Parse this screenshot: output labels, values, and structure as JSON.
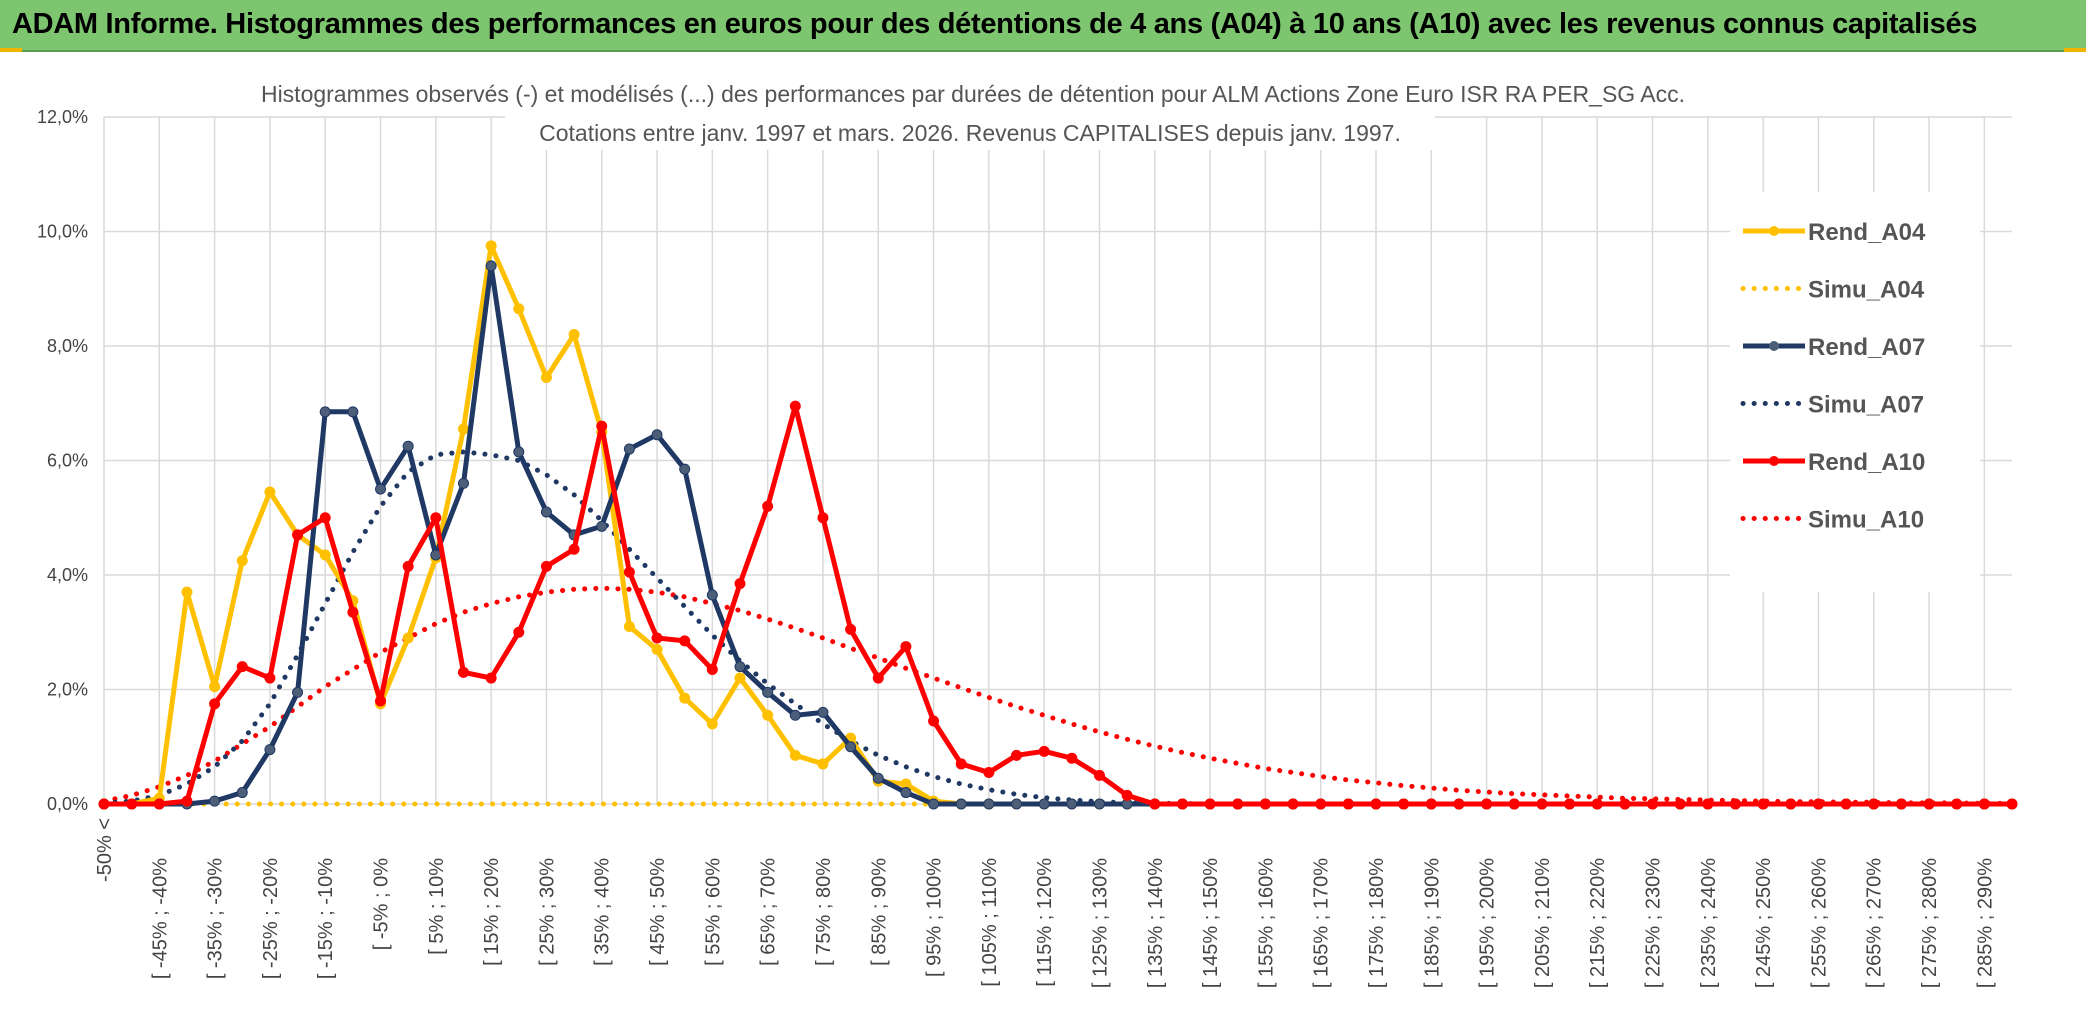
{
  "banner": {
    "title": "ADAM Informe. Histogrammes des performances en euros pour des détentions de 4 ans (A04) à 10 ans (A10) avec les revenus connus capitalisés"
  },
  "colors": {
    "banner_bg": "#7dc56f",
    "A04": "#ffc000",
    "A07": "#1f3864",
    "A10": "#ff0000",
    "grid": "#d9d9d9"
  },
  "chart_data": {
    "type": "line",
    "title_line1": "Histogrammes observés (-) et modélisés (...) des performances par durées de détention pour ALM Actions Zone Euro ISR RA PER_SG Acc.",
    "title_line2": "Cotations entre janv. 1997 et mars. 2026. Revenus CAPITALISES depuis janv. 1997.",
    "y_tick_labels": [
      "0,0%",
      "2,0%",
      "4,0%",
      "6,0%",
      "8,0%",
      "10,0%",
      "12,0%"
    ],
    "ylim": [
      0,
      12
    ],
    "x_tick_labels": [
      "-50% <",
      "[ -45% ; -40%",
      "[ -35% ; -30%",
      "[ -25% ; -20%",
      "[ -15% ; -10%",
      "[ -5% ; 0%",
      "[ 5% ; 10%",
      "[ 15% ; 20%",
      "[ 25% ; 30%",
      "[ 35% ; 40%",
      "[ 45% ; 50%",
      "[ 55% ; 60%",
      "[ 65% ; 70%",
      "[ 75% ; 80%",
      "[ 85% ; 90%",
      "[ 95% ; 100%",
      "[ 105% ; 110%",
      "[ 115% ; 120%",
      "[ 125% ; 130%",
      "[ 135% ; 140%",
      "[ 145% ; 150%",
      "[ 155% ; 160%",
      "[ 165% ; 170%",
      "[ 175% ; 180%",
      "[ 185% ; 190%",
      "[ 195% ; 200%",
      "[ 205% ; 210%",
      "[ 215% ; 220%",
      "[ 225% ; 230%",
      "[ 235% ; 240%",
      "[ 245% ; 250%",
      "[ 255% ; 260%",
      "[ 265% ; 270%",
      "[ 275% ; 280%",
      "[ 285% ; 290%"
    ],
    "n_points": 70,
    "series": [
      {
        "name": "Rend_A04",
        "style": "solid",
        "color": "#ffc000",
        "values": [
          0,
          0,
          0.1,
          3.7,
          2.05,
          4.25,
          5.45,
          4.7,
          4.35,
          3.55,
          1.75,
          2.9,
          4.3,
          6.55,
          9.75,
          8.65,
          7.45,
          8.2,
          6.5,
          3.1,
          2.7,
          1.85,
          1.4,
          2.2,
          1.55,
          0.85,
          0.7,
          1.15,
          0.4,
          0.35,
          0.05,
          0,
          0,
          0,
          0,
          0,
          0,
          0,
          0,
          0,
          0,
          0,
          0,
          0,
          0,
          0,
          0,
          0,
          0,
          0,
          0,
          0,
          0,
          0,
          0,
          0,
          0,
          0,
          0,
          0,
          0,
          0,
          0,
          0,
          0,
          0,
          0,
          0,
          0,
          0
        ]
      },
      {
        "name": "Simu_A04",
        "style": "dotted",
        "color": "#ffc000",
        "values": [
          0,
          0,
          0,
          0,
          0,
          0,
          0,
          0,
          0,
          0,
          0,
          0,
          0,
          0,
          0,
          0,
          0,
          0,
          0,
          0,
          0,
          0,
          0,
          0,
          0,
          0,
          0,
          0,
          0,
          0,
          0,
          0,
          0,
          0,
          0,
          0,
          0,
          0,
          0,
          0,
          0,
          0,
          0,
          0,
          0,
          0,
          0,
          0,
          0,
          0,
          0,
          0,
          0,
          0,
          0,
          0,
          0,
          0,
          0,
          0,
          0,
          0,
          0,
          0,
          0,
          0,
          0,
          0,
          0,
          0
        ]
      },
      {
        "name": "Rend_A07",
        "style": "solid",
        "color": "#1f3864",
        "values": [
          0,
          0,
          0,
          0,
          0.05,
          0.2,
          0.95,
          1.95,
          6.85,
          6.85,
          5.5,
          6.25,
          4.35,
          5.6,
          9.4,
          6.15,
          5.1,
          4.7,
          4.85,
          6.2,
          6.45,
          5.85,
          3.65,
          2.4,
          1.95,
          1.55,
          1.6,
          1.0,
          0.45,
          0.2,
          0,
          0,
          0,
          0,
          0,
          0,
          0,
          0,
          0,
          0,
          0,
          0,
          0,
          0,
          0,
          0,
          0,
          0,
          0,
          0,
          0,
          0,
          0,
          0,
          0,
          0,
          0,
          0,
          0,
          0,
          0,
          0,
          0,
          0,
          0,
          0,
          0,
          0,
          0,
          0
        ]
      },
      {
        "name": "Simu_A07",
        "style": "dotted",
        "color": "#1f3864",
        "values": [
          0.02,
          0.05,
          0.15,
          0.35,
          0.65,
          1.1,
          1.75,
          2.6,
          3.5,
          4.4,
          5.2,
          5.8,
          6.1,
          6.15,
          6.1,
          6.0,
          5.75,
          5.4,
          4.95,
          4.45,
          3.95,
          3.45,
          2.95,
          2.5,
          2.1,
          1.75,
          1.4,
          1.1,
          0.85,
          0.65,
          0.48,
          0.35,
          0.25,
          0.17,
          0.11,
          0.07,
          0.04,
          0.02,
          0.01,
          0.01,
          0,
          0,
          0,
          0,
          0,
          0,
          0,
          0,
          0,
          0,
          0,
          0,
          0,
          0,
          0,
          0,
          0,
          0,
          0,
          0,
          0,
          0,
          0,
          0,
          0,
          0,
          0,
          0,
          0,
          0
        ]
      },
      {
        "name": "Rend_A10",
        "style": "solid",
        "color": "#ff0000",
        "values": [
          0,
          0,
          0,
          0.05,
          1.75,
          2.4,
          2.2,
          4.7,
          5.0,
          3.35,
          1.8,
          4.15,
          5.0,
          2.3,
          2.2,
          3.0,
          4.15,
          4.45,
          6.6,
          4.05,
          2.9,
          2.85,
          2.35,
          3.85,
          5.2,
          6.95,
          5.0,
          3.05,
          2.2,
          2.75,
          1.45,
          0.7,
          0.55,
          0.85,
          0.92,
          0.8,
          0.5,
          0.15,
          0,
          0,
          0,
          0,
          0,
          0,
          0,
          0,
          0,
          0,
          0,
          0,
          0,
          0,
          0,
          0,
          0,
          0,
          0,
          0,
          0,
          0,
          0,
          0,
          0,
          0,
          0,
          0,
          0,
          0,
          0,
          0
        ]
      },
      {
        "name": "Simu_A10",
        "style": "dotted",
        "color": "#ff0000",
        "values": [
          0.05,
          0.15,
          0.3,
          0.5,
          0.75,
          1.05,
          1.35,
          1.7,
          2.05,
          2.35,
          2.65,
          2.9,
          3.15,
          3.35,
          3.5,
          3.62,
          3.7,
          3.75,
          3.77,
          3.75,
          3.7,
          3.62,
          3.5,
          3.38,
          3.23,
          3.07,
          2.9,
          2.72,
          2.55,
          2.37,
          2.2,
          2.03,
          1.86,
          1.7,
          1.55,
          1.4,
          1.26,
          1.13,
          1.01,
          0.9,
          0.8,
          0.71,
          0.62,
          0.55,
          0.48,
          0.42,
          0.37,
          0.32,
          0.28,
          0.24,
          0.21,
          0.18,
          0.16,
          0.14,
          0.12,
          0.1,
          0.09,
          0.08,
          0.07,
          0.06,
          0.05,
          0.04,
          0.04,
          0.03,
          0.03,
          0.02,
          0.02,
          0.02,
          0.01,
          0.01
        ]
      }
    ],
    "legend_position": "right"
  }
}
